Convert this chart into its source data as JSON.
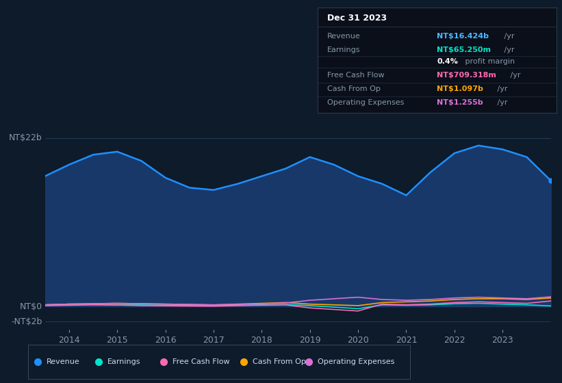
{
  "bg_color": "#0d1b2a",
  "plot_bg_color": "#0d1b2a",
  "years": [
    2013.5,
    2014,
    2014.5,
    2015,
    2015.5,
    2016,
    2016.5,
    2017,
    2017.5,
    2018,
    2018.5,
    2019,
    2019.5,
    2020,
    2020.5,
    2021,
    2021.5,
    2022,
    2022.5,
    2023,
    2023.5,
    2024
  ],
  "revenue": [
    17000,
    18500,
    19800,
    20200,
    19000,
    16800,
    15500,
    15200,
    16000,
    17000,
    18000,
    19500,
    18500,
    17000,
    16000,
    14500,
    17500,
    20000,
    21000,
    20500,
    19500,
    16424
  ],
  "earnings": [
    200,
    300,
    250,
    200,
    180,
    150,
    100,
    80,
    150,
    200,
    250,
    100,
    -100,
    -300,
    200,
    150,
    200,
    350,
    400,
    300,
    200,
    65.25
  ],
  "free_cash_flow": [
    100,
    150,
    200,
    180,
    100,
    80,
    50,
    30,
    100,
    150,
    200,
    -200,
    -400,
    -600,
    300,
    200,
    300,
    500,
    600,
    500,
    400,
    709.318
  ],
  "cash_from_op": [
    200,
    300,
    350,
    400,
    350,
    300,
    250,
    200,
    300,
    400,
    500,
    300,
    200,
    100,
    500,
    600,
    700,
    900,
    1000,
    1000,
    900,
    1097
  ],
  "operating_expenses": [
    200,
    300,
    350,
    400,
    350,
    300,
    250,
    200,
    250,
    350,
    450,
    800,
    1000,
    1200,
    900,
    800,
    900,
    1100,
    1200,
    1100,
    1000,
    1255
  ],
  "revenue_color": "#1e90ff",
  "revenue_fill_color": "#1a3a6e",
  "earnings_color": "#00e5c8",
  "fcf_color": "#ff69b4",
  "cfo_color": "#ffa500",
  "opex_color": "#da70d6",
  "legend_items": [
    "Revenue",
    "Earnings",
    "Free Cash Flow",
    "Cash From Op",
    "Operating Expenses"
  ],
  "legend_colors": [
    "#1e90ff",
    "#00e5c8",
    "#ff69b4",
    "#ffa500",
    "#da70d6"
  ],
  "x_ticks": [
    2014,
    2015,
    2016,
    2017,
    2018,
    2019,
    2020,
    2021,
    2022,
    2023
  ],
  "ylim_min": -3000,
  "ylim_max": 24000,
  "info_box": {
    "date": "Dec 31 2023",
    "rows": [
      {
        "label": "Revenue",
        "value": "NT$16.424b",
        "value_color": "#4db8ff",
        "suffix": " /yr"
      },
      {
        "label": "Earnings",
        "value": "NT$65.250m",
        "value_color": "#00e5c8",
        "suffix": " /yr"
      },
      {
        "label": "",
        "value": "0.4%",
        "value_color": "#ffffff",
        "suffix": " profit margin"
      },
      {
        "label": "Free Cash Flow",
        "value": "NT$709.318m",
        "value_color": "#ff69b4",
        "suffix": " /yr"
      },
      {
        "label": "Cash From Op",
        "value": "NT$1.097b",
        "value_color": "#ffa500",
        "suffix": " /yr"
      },
      {
        "label": "Operating Expenses",
        "value": "NT$1.255b",
        "value_color": "#da70d6",
        "suffix": " /yr"
      }
    ]
  }
}
